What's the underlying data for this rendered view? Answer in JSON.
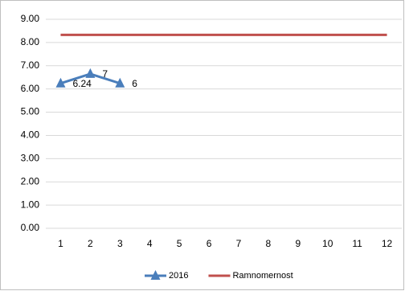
{
  "chart_data": {
    "type": "line",
    "categories": [
      "1",
      "2",
      "3",
      "4",
      "5",
      "6",
      "7",
      "8",
      "9",
      "10",
      "11",
      "12"
    ],
    "series": [
      {
        "name": "2016",
        "color": "#4a7ebb",
        "marker": "triangle",
        "values": [
          6.24,
          6.65,
          6.24,
          null,
          null,
          null,
          null,
          null,
          null,
          null,
          null,
          null
        ],
        "value_labels": [
          "6.24",
          "7",
          "6",
          null,
          null,
          null,
          null,
          null,
          null,
          null,
          null,
          null
        ]
      },
      {
        "name": "Ramnomernost",
        "color": "#c0504d",
        "values": [
          8.33,
          8.33,
          8.33,
          8.33,
          8.33,
          8.33,
          8.33,
          8.33,
          8.33,
          8.33,
          8.33,
          8.33
        ]
      }
    ],
    "ylim": [
      0,
      9
    ],
    "yticks": [
      {
        "value": 0,
        "label": "0.00"
      },
      {
        "value": 1,
        "label": "1.00"
      },
      {
        "value": 2,
        "label": "2.00"
      },
      {
        "value": 3,
        "label": "3.00"
      },
      {
        "value": 4,
        "label": "4.00"
      },
      {
        "value": 5,
        "label": "5.00"
      },
      {
        "value": 6,
        "label": "6.00"
      },
      {
        "value": 7,
        "label": "7.00"
      },
      {
        "value": 8,
        "label": "8.00"
      },
      {
        "value": 9,
        "label": "9.00"
      }
    ],
    "grid": true,
    "legend": "bottom"
  }
}
